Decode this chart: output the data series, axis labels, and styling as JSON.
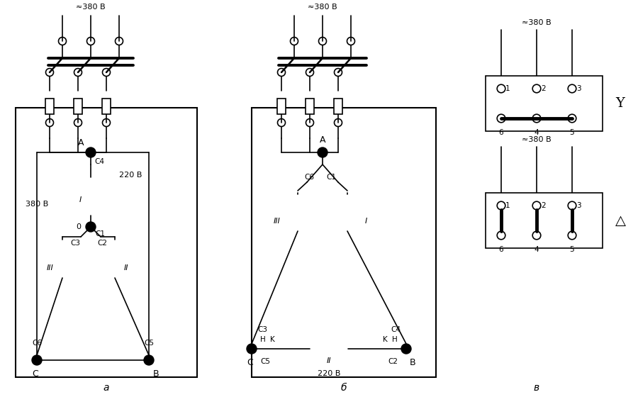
{
  "bg_color": "#ffffff",
  "label_a": "а",
  "label_b": "б",
  "label_v": "в",
  "voltage_380": "≈380 В",
  "voltage_220": "220 В",
  "voltage_380b": "380 В",
  "label_A": "A",
  "label_B": "B",
  "label_C": "C",
  "label_0": "0",
  "label_I": "I",
  "label_II": "II",
  "label_III": "III",
  "label_C1": "C1",
  "label_C2": "C2",
  "label_C3": "C3",
  "label_C4": "C4",
  "label_C5": "C5",
  "label_C6": "C6",
  "label_H": "H",
  "label_K": "K",
  "star_symbol": "Y",
  "delta_symbol": "△"
}
